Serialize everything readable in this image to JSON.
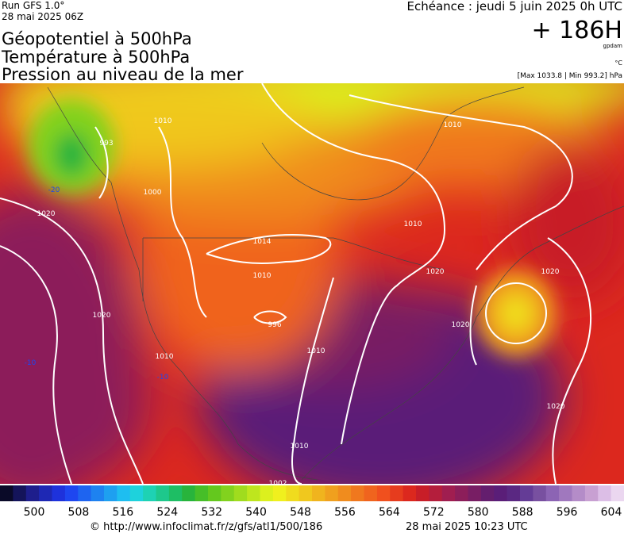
{
  "header": {
    "run": "Run GFS 1.0°",
    "run_date": "28 mai 2025 06Z",
    "titles": [
      "Géopotentiel à 500hPa",
      "Température à 500hPa",
      "Pression au niveau de la mer"
    ],
    "valid": "Echéance : jeudi 5 juin 2025 0h UTC",
    "lead": "+ 186H",
    "unit_geo": "gpdam",
    "unit_temp": "°C",
    "pressure_range": "[Max 1033.8 | Min 993.2] hPa"
  },
  "map": {
    "isobar_labels": [
      "993",
      "1010",
      "1000",
      "1020",
      "1014",
      "1010",
      "996",
      "1010",
      "1020",
      "1010",
      "1020",
      "1010",
      "1020",
      "1010",
      "1002",
      "1020",
      "1020",
      "1010"
    ],
    "temp_labels": [
      "-20",
      "-10",
      "-10"
    ]
  },
  "colorbar": {
    "colors": [
      "#0a0a28",
      "#14145a",
      "#1e1e8c",
      "#1e28b4",
      "#1e32dc",
      "#1e46f0",
      "#1e64f0",
      "#1e82f0",
      "#1ea0f0",
      "#1ebef0",
      "#1ed2dc",
      "#1ed2b4",
      "#1ec88c",
      "#1ebe64",
      "#28b43c",
      "#46be28",
      "#64c81e",
      "#82d21e",
      "#a0dc1e",
      "#bee61e",
      "#dcf01e",
      "#f0f01e",
      "#f0dc1e",
      "#f0c81e",
      "#f0b41e",
      "#f0a01e",
      "#f08c1e",
      "#f0781e",
      "#f0641e",
      "#f0501e",
      "#e63c1e",
      "#dc281e",
      "#c81e28",
      "#b41e3c",
      "#a01e50",
      "#8c1e5a",
      "#781e64",
      "#641e6e",
      "#5a1e78",
      "#5a2882",
      "#643c96",
      "#7850a0",
      "#8c64b4",
      "#a078be",
      "#b48cc8",
      "#c8a0d2",
      "#dcbee6",
      "#ebd7f0"
    ],
    "labels": [
      "500",
      "508",
      "516",
      "524",
      "532",
      "540",
      "548",
      "556",
      "564",
      "572",
      "580",
      "588",
      "596",
      "604"
    ]
  },
  "footer": {
    "url": "© http://www.infoclimat.fr/z/gfs/atl1/500/186",
    "generated": "28 mai 2025 10:23 UTC"
  }
}
